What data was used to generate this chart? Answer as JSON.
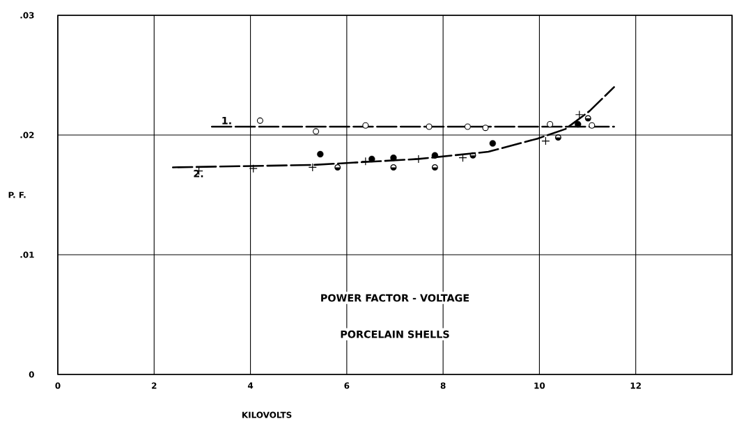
{
  "chart_data": {
    "type": "scatter",
    "title": "POWER FACTOR - VOLTAGE",
    "subtitle": "PORCELAIN SHELLS",
    "xlabel": "KILOVOLTS",
    "ylabel": "P. F.",
    "xlim": [
      0,
      14
    ],
    "ylim": [
      0,
      0.03
    ],
    "xticks": [
      0,
      2,
      4,
      6,
      8,
      10,
      12,
      {
        "value": 14,
        "label": null
      }
    ],
    "yticks": [
      {
        "value": 0,
        "label": "0"
      },
      {
        "value": 0.01,
        "label": ".01"
      },
      {
        "value": 0.02,
        "label": ".02"
      },
      {
        "value": 0.03,
        "label": ".03"
      }
    ],
    "grid": true,
    "series": [
      {
        "name": "1.",
        "type": "line",
        "line_style": "dashed",
        "marker": "none",
        "color": "#000000",
        "x": [
          3.2,
          11.55
        ],
        "values": [
          0.0207,
          0.0207
        ]
      },
      {
        "name": "2.",
        "type": "line",
        "line_style": "dashed",
        "marker": "none",
        "color": "#000000",
        "x": [
          2.39,
          5.29,
          7.49,
          8.94,
          9.96,
          10.54,
          11.04,
          11.55
        ],
        "values": [
          0.0173,
          0.0175,
          0.018,
          0.0186,
          0.0197,
          0.0205,
          0.022,
          0.024
        ]
      },
      {
        "type": "scatter",
        "marker": "circle",
        "color": "#000000",
        "x": [
          4.2,
          5.36,
          6.39,
          7.71,
          8.51,
          8.88,
          10.22,
          11.09
        ],
        "values": [
          0.0212,
          0.0203,
          0.0208,
          0.0207,
          0.0207,
          0.0206,
          0.0209,
          0.0208
        ]
      },
      {
        "type": "scatter",
        "marker": "circle",
        "color": "#000000",
        "x": [
          5.45,
          6.52,
          6.97,
          7.83,
          9.03,
          10.8
        ],
        "values": [
          0.0184,
          0.018,
          0.0181,
          0.0183,
          0.0193,
          0.0209
        ]
      },
      {
        "type": "scatter",
        "color": "#000000",
        "x": [
          5.81,
          6.97,
          7.83,
          8.62,
          10.39,
          11.01
        ],
        "values": [
          0.0173,
          0.0173,
          0.0173,
          0.0183,
          0.0198,
          0.0214
        ]
      },
      {
        "type": "scatter",
        "marker": "cross",
        "color": "#000000",
        "x": [
          2.93,
          4.06,
          5.29,
          6.39,
          7.49,
          8.41,
          10.13,
          10.83
        ],
        "values": [
          0.017,
          0.0172,
          0.0173,
          0.0178,
          0.018,
          0.0181,
          0.0195,
          0.0217
        ]
      }
    ]
  }
}
